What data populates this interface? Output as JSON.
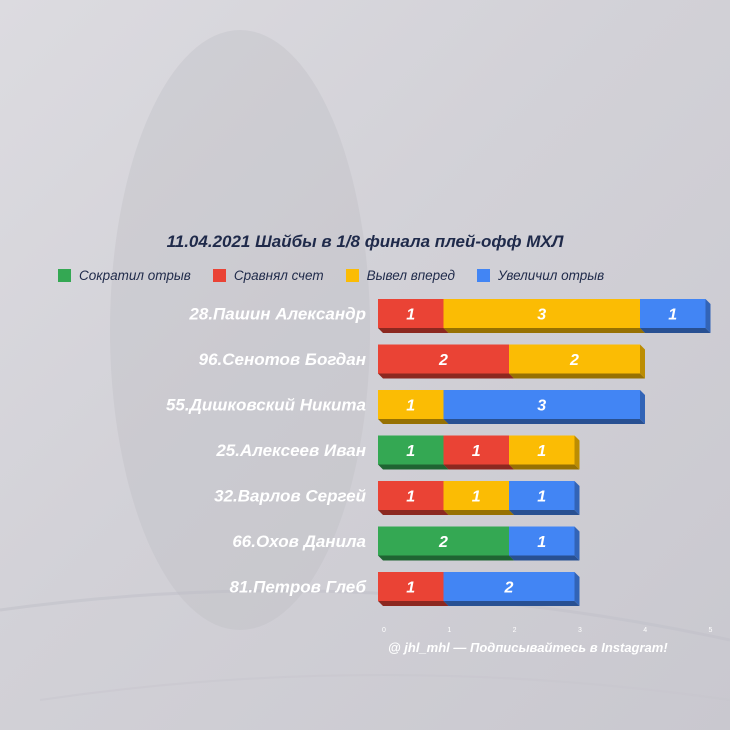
{
  "chart_data": {
    "type": "bar",
    "orientation": "horizontal",
    "stacked": true,
    "title": "11.04.2021 Шайбы в 1/8 финала плей-офф МХЛ",
    "categories": [
      "28.Пашин Александр",
      "96.Сенотов Богдан",
      "55.Дишковский Никита",
      "25.Алексеев Иван",
      "32.Варлов Сергей",
      "66.Охов Данила",
      "81.Петров Глеб"
    ],
    "series": [
      {
        "name": "Сократил отрыв",
        "color": "#34a853",
        "values": [
          0,
          0,
          0,
          1,
          0,
          2,
          0
        ]
      },
      {
        "name": "Сравнял счет",
        "color": "#ea4335",
        "values": [
          1,
          2,
          0,
          1,
          1,
          0,
          1
        ]
      },
      {
        "name": "Вывел вперед",
        "color": "#fbbc04",
        "values": [
          3,
          2,
          1,
          1,
          1,
          0,
          0
        ]
      },
      {
        "name": "Увеличил отрыв",
        "color": "#4285f4",
        "values": [
          1,
          0,
          3,
          0,
          1,
          1,
          2
        ]
      }
    ],
    "xlim": [
      0,
      5
    ],
    "xticks": [
      "0",
      "1",
      "2",
      "3",
      "4",
      "5"
    ],
    "legend_position": "top",
    "grid": false
  },
  "footer": "@ jhl_mhl — Подписывайтесь в Instagram!"
}
